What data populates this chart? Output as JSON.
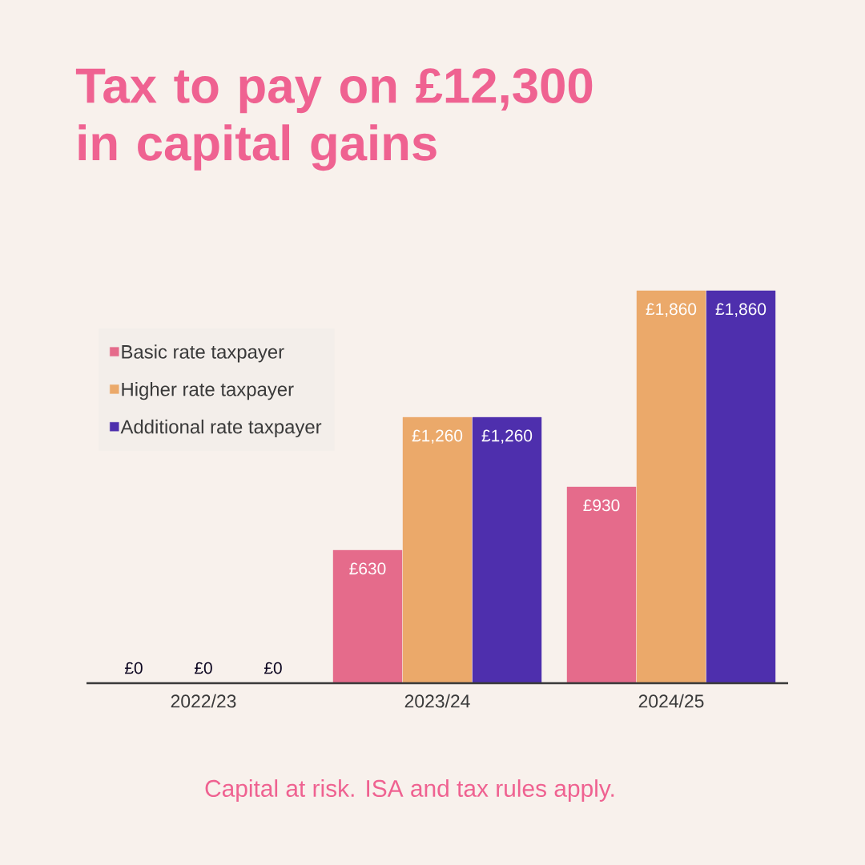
{
  "chart_data": {
    "type": "bar",
    "title": "Tax to pay on £12,300 in capital gains",
    "categories": [
      "2022/23",
      "2023/24",
      "2024/25"
    ],
    "series": [
      {
        "name": "Basic rate taxpayer",
        "color": "#e56b8b",
        "values": [
          0,
          630,
          930
        ],
        "value_labels": [
          "£0",
          "£630",
          "£930"
        ]
      },
      {
        "name": "Higher rate taxpayer",
        "color": "#eba96a",
        "values": [
          0,
          1260,
          1860
        ],
        "value_labels": [
          "£0",
          "£1,260",
          "£1,860"
        ]
      },
      {
        "name": "Additional rate taxpayer",
        "color": "#4e2fad",
        "values": [
          0,
          1260,
          1860
        ],
        "value_labels": [
          "£0",
          "£1,260",
          "£1,860"
        ]
      }
    ],
    "legend": "top left",
    "annotations": [
      "Capital at risk. ISA and tax rules apply."
    ]
  }
}
